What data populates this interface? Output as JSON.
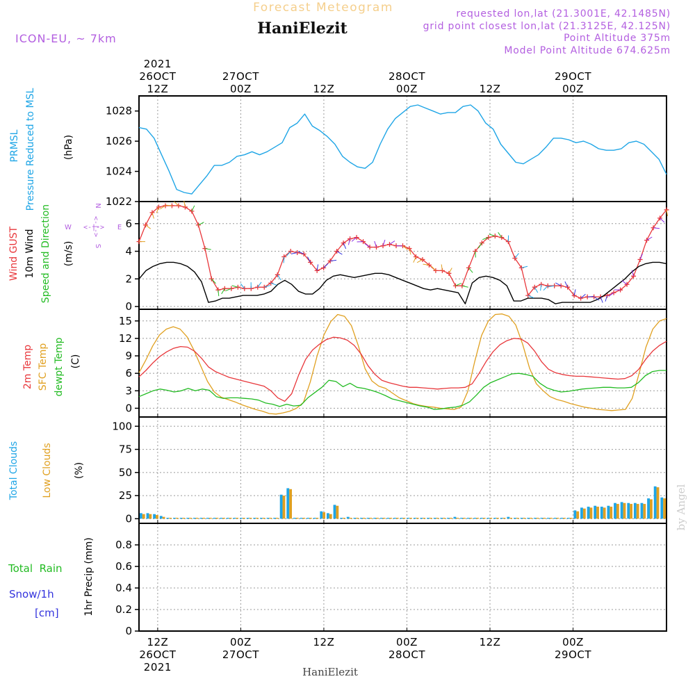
{
  "header": {
    "product": "Forecast Meteogram",
    "location": "HaniElezit",
    "model": "ICON-EU, ~ 7km",
    "requested": "requested lon,lat (21.3001E, 42.1485N)",
    "closest": "grid point closest lon,lat (21.3125E, 42.125N)",
    "point_alt": "Point Altitude 375m",
    "model_alt": "Model Point Altitude 674.625m"
  },
  "footer": {
    "location": "HaniElezit",
    "credit": "by Angel"
  },
  "colors": {
    "pressure": "#1ea5e6",
    "gust": "#e8363a",
    "wind": "#000000",
    "dir": "#22bb22",
    "temp": "#e8363a",
    "sfc": "#e0a020",
    "dew": "#22bb22",
    "total_clouds": "#1ea5e6",
    "low_clouds": "#e0a020",
    "purple": "#b35fe0",
    "snow": "#3333dd"
  },
  "time_axis": {
    "top": [
      {
        "t": 12,
        "lines": [
          "2021",
          "26OCT",
          "12Z"
        ]
      },
      {
        "t": 24,
        "lines": [
          "27OCT",
          "00Z"
        ]
      },
      {
        "t": 36,
        "lines": [
          "12Z"
        ]
      },
      {
        "t": 48,
        "lines": [
          "28OCT",
          "00Z"
        ]
      },
      {
        "t": 60,
        "lines": [
          "12Z"
        ]
      },
      {
        "t": 72,
        "lines": [
          "29OCT",
          "00Z"
        ]
      }
    ],
    "bottom": [
      {
        "t": 12,
        "lines": [
          "12Z",
          "26OCT",
          "2021"
        ]
      },
      {
        "t": 24,
        "lines": [
          "00Z",
          "27OCT"
        ]
      },
      {
        "t": 36,
        "lines": [
          "12Z"
        ]
      },
      {
        "t": 48,
        "lines": [
          "00Z",
          "28OCT"
        ]
      },
      {
        "t": 60,
        "lines": [
          "12Z"
        ]
      },
      {
        "t": 72,
        "lines": [
          "00Z",
          "29OCT"
        ]
      }
    ]
  },
  "panels": {
    "pressure": {
      "labels": [
        "PRMSL",
        "Pressure Reduced to MSL"
      ],
      "unit": "(hPa)"
    },
    "wind": {
      "labels": [
        "Wind GUST",
        "10m Wind",
        "Speed and Direction"
      ],
      "unit": "(m/s)",
      "compass": {
        "w": "W",
        "arrow": "<-|->",
        "e": "E",
        "n": "N",
        "s": "S"
      }
    },
    "temp": {
      "labels": [
        "2m Temp",
        "SFC Temp",
        "dewpt Temp"
      ],
      "unit": "(C)"
    },
    "clouds": {
      "labels": [
        "Total Clouds",
        "Low Clouds"
      ],
      "unit": "(%)"
    },
    "precip": {
      "labels": [
        "Total  Rain",
        "Snow/1h",
        "[cm]"
      ],
      "axis_label": "1hr Precip (mm)"
    }
  },
  "chart_data": [
    {
      "type": "line",
      "panel": "pressure",
      "title": "",
      "ylabel": "(hPa)",
      "ylim": [
        1022,
        1029
      ],
      "yticks": [
        1022,
        1024,
        1026,
        1028
      ],
      "x_start": 9.3,
      "x_end": 85.5,
      "series": [
        {
          "name": "PRMSL",
          "values": [
            1026.9,
            1026.8,
            1026.2,
            1025.1,
            1024.0,
            1022.8,
            1022.6,
            1022.5,
            1023.1,
            1023.7,
            1024.4,
            1024.4,
            1024.6,
            1025.0,
            1025.1,
            1025.3,
            1025.1,
            1025.3,
            1025.6,
            1025.9,
            1026.9,
            1027.2,
            1027.8,
            1027.0,
            1026.7,
            1026.3,
            1025.8,
            1025.0,
            1024.6,
            1024.3,
            1024.2,
            1024.6,
            1025.8,
            1026.8,
            1027.5,
            1027.9,
            1028.3,
            1028.4,
            1028.2,
            1028.0,
            1027.8,
            1027.9,
            1027.9,
            1028.3,
            1028.4,
            1028.0,
            1027.2,
            1026.8,
            1025.8,
            1025.2,
            1024.6,
            1024.5,
            1024.8,
            1025.1,
            1025.6,
            1026.2,
            1026.2,
            1026.1,
            1025.9,
            1026.0,
            1025.8,
            1025.5,
            1025.4,
            1025.4,
            1025.5,
            1025.9,
            1026.0,
            1025.8,
            1025.3,
            1024.8,
            1023.8
          ]
        }
      ]
    },
    {
      "type": "line",
      "panel": "wind",
      "title": "",
      "ylabel": "(m/s)",
      "ylim": [
        -0.2,
        7.6
      ],
      "yticks": [
        0,
        2,
        4,
        6
      ],
      "grid": true,
      "x_start": 9.3,
      "x_end": 85.5,
      "series": [
        {
          "name": "Wind GUST",
          "values": [
            4.7,
            5.9,
            6.8,
            7.2,
            7.3,
            7.3,
            7.3,
            7.2,
            6.9,
            5.9,
            4.2,
            2.0,
            1.2,
            1.3,
            1.3,
            1.4,
            1.3,
            1.3,
            1.4,
            1.4,
            1.7,
            2.3,
            3.6,
            4.0,
            3.9,
            3.8,
            3.2,
            2.6,
            2.8,
            3.3,
            4.0,
            4.6,
            4.9,
            5.0,
            4.7,
            4.3,
            4.3,
            4.4,
            4.5,
            4.4,
            4.4,
            4.2,
            3.6,
            3.4,
            3.0,
            2.6,
            2.6,
            2.4,
            1.5,
            1.5,
            2.8,
            4.0,
            4.6,
            5.0,
            5.1,
            5.0,
            4.7,
            3.5,
            2.8,
            0.8,
            1.4,
            1.6,
            1.5,
            1.5,
            1.5,
            1.4,
            0.8,
            0.6,
            0.7,
            0.7,
            0.7,
            0.8,
            1.0,
            1.2,
            1.6,
            2.2,
            3.4,
            4.8,
            5.7,
            6.4,
            7.0
          ]
        },
        {
          "name": "10m Wind",
          "values": [
            2.0,
            2.6,
            2.9,
            3.1,
            3.2,
            3.2,
            3.1,
            2.9,
            2.5,
            1.8,
            0.3,
            0.4,
            0.6,
            0.6,
            0.7,
            0.8,
            0.8,
            0.8,
            0.9,
            1.1,
            1.6,
            1.9,
            1.6,
            1.1,
            0.9,
            0.9,
            1.3,
            1.9,
            2.2,
            2.3,
            2.2,
            2.1,
            2.2,
            2.3,
            2.4,
            2.4,
            2.3,
            2.1,
            1.9,
            1.7,
            1.5,
            1.3,
            1.2,
            1.3,
            1.2,
            1.1,
            1.0,
            0.2,
            1.7,
            2.1,
            2.2,
            2.1,
            1.9,
            1.5,
            0.4,
            0.4,
            0.6,
            0.6,
            0.6,
            0.5,
            0.2,
            0.3,
            0.3,
            0.3,
            0.3,
            0.3,
            0.5,
            0.8,
            1.2,
            1.6,
            2.0,
            2.5,
            2.9,
            3.1,
            3.2,
            3.2,
            3.1
          ]
        }
      ]
    },
    {
      "type": "line",
      "panel": "temp",
      "title": "",
      "ylabel": "(C)",
      "ylim": [
        -1.5,
        17
      ],
      "yticks": [
        0,
        3,
        6,
        9,
        12,
        15
      ],
      "grid": true,
      "x_start": 9.3,
      "x_end": 85.5,
      "series": [
        {
          "name": "2m Temp",
          "values": [
            5.4,
            6.5,
            7.8,
            8.9,
            9.7,
            10.3,
            10.6,
            10.5,
            9.8,
            8.6,
            7.1,
            6.3,
            5.8,
            5.3,
            5.0,
            4.7,
            4.4,
            4.1,
            3.8,
            3.0,
            1.8,
            1.2,
            2.5,
            5.7,
            8.4,
            10.0,
            11.0,
            11.8,
            12.2,
            12.1,
            11.7,
            10.8,
            9.3,
            7.3,
            5.8,
            4.8,
            4.4,
            4.1,
            3.8,
            3.6,
            3.6,
            3.5,
            3.4,
            3.3,
            3.4,
            3.5,
            3.5,
            3.6,
            4.2,
            6.0,
            8.0,
            9.7,
            10.9,
            11.6,
            12.0,
            11.9,
            11.2,
            9.8,
            8.0,
            6.7,
            6.1,
            5.8,
            5.6,
            5.5,
            5.5,
            5.4,
            5.3,
            5.2,
            5.1,
            5.0,
            5.1,
            5.6,
            6.7,
            8.4,
            9.8,
            10.8,
            11.5
          ]
        },
        {
          "name": "SFC Temp",
          "values": [
            6.1,
            8.3,
            10.7,
            12.6,
            13.6,
            14.0,
            13.6,
            12.3,
            10.0,
            7.3,
            4.6,
            2.8,
            1.9,
            1.5,
            1.1,
            0.6,
            0.2,
            -0.2,
            -0.5,
            -0.9,
            -1.0,
            -0.8,
            -0.5,
            0.0,
            1.0,
            4.5,
            9.0,
            12.6,
            14.9,
            16.1,
            15.8,
            14.2,
            10.8,
            6.8,
            4.7,
            3.8,
            3.4,
            2.6,
            1.8,
            1.3,
            0.8,
            0.5,
            0.3,
            0.2,
            0.0,
            -0.1,
            -0.2,
            0.2,
            2.9,
            8.0,
            12.5,
            15.0,
            16.1,
            16.2,
            15.8,
            14.3,
            11.0,
            6.9,
            4.2,
            3.0,
            2.0,
            1.5,
            1.2,
            0.8,
            0.5,
            0.2,
            0.0,
            -0.2,
            -0.3,
            -0.4,
            -0.3,
            -0.2,
            1.7,
            6.0,
            10.5,
            13.6,
            15.0,
            15.4
          ]
        },
        {
          "name": "dewpt Temp",
          "values": [
            2.0,
            2.5,
            3.0,
            3.3,
            3.1,
            2.8,
            3.0,
            3.4,
            3.0,
            3.3,
            3.1,
            2.0,
            1.7,
            1.8,
            1.8,
            1.7,
            1.6,
            1.4,
            0.9,
            0.7,
            0.3,
            0.7,
            0.4,
            0.5,
            1.8,
            2.7,
            3.6,
            4.8,
            4.6,
            3.7,
            4.3,
            3.6,
            3.4,
            3.1,
            2.7,
            2.2,
            1.6,
            1.3,
            1.0,
            0.7,
            0.4,
            0.2,
            -0.2,
            -0.1,
            0.1,
            0.2,
            0.5,
            1.1,
            2.3,
            3.6,
            4.4,
            4.9,
            5.4,
            5.9,
            6.0,
            5.8,
            5.5,
            4.3,
            3.5,
            3.1,
            2.8,
            2.9,
            3.1,
            3.3,
            3.4,
            3.5,
            3.6,
            3.6,
            3.5,
            3.5,
            3.6,
            4.4,
            5.6,
            6.3,
            6.5,
            6.5
          ]
        }
      ]
    },
    {
      "type": "bar",
      "panel": "clouds",
      "title": "",
      "ylabel": "(%)",
      "ylim": [
        -5,
        110
      ],
      "yticks": [
        0,
        25,
        50,
        75,
        100
      ],
      "grid": true,
      "x_start": 9.3,
      "x_end": 85.5,
      "series": [
        {
          "name": "Total Clouds",
          "values": [
            6,
            6,
            5,
            3,
            1,
            1,
            1,
            1,
            1,
            1,
            1,
            1,
            1,
            1,
            1,
            1,
            1,
            1,
            1,
            1,
            1,
            26,
            33,
            1,
            1,
            1,
            1,
            8,
            6,
            15,
            1,
            2,
            1,
            1,
            1,
            1,
            1,
            1,
            1,
            1,
            1,
            1,
            1,
            1,
            1,
            1,
            1,
            2,
            1,
            1,
            1,
            1,
            1,
            1,
            1,
            2,
            1,
            1,
            1,
            1,
            1,
            1,
            1,
            1,
            1,
            9,
            12,
            13,
            14,
            13,
            14,
            17,
            18,
            17,
            17,
            17,
            22,
            35,
            23
          ]
        },
        {
          "name": "Low Clouds",
          "values": [
            5,
            5,
            4,
            2,
            1,
            1,
            1,
            1,
            1,
            1,
            1,
            1,
            1,
            1,
            1,
            1,
            1,
            1,
            1,
            1,
            1,
            25,
            32,
            1,
            1,
            1,
            1,
            7,
            5,
            14,
            1,
            1,
            1,
            1,
            1,
            1,
            1,
            1,
            1,
            1,
            1,
            1,
            1,
            1,
            1,
            1,
            1,
            1,
            1,
            1,
            1,
            1,
            1,
            1,
            1,
            1,
            1,
            1,
            1,
            1,
            1,
            1,
            1,
            1,
            1,
            8,
            11,
            12,
            13,
            12,
            13,
            16,
            17,
            16,
            16,
            16,
            21,
            34,
            22
          ]
        }
      ]
    },
    {
      "type": "bar",
      "panel": "precip",
      "title": "",
      "ylabel": "1hr Precip (mm)",
      "ylim": [
        0,
        1
      ],
      "yticks": [
        0,
        0.2,
        0.4,
        0.6,
        0.8
      ],
      "grid": true,
      "x_start": 9.3,
      "x_end": 85.5,
      "series": [
        {
          "name": "Total Rain",
          "values": []
        },
        {
          "name": "Snow/1h",
          "values": []
        }
      ]
    }
  ]
}
